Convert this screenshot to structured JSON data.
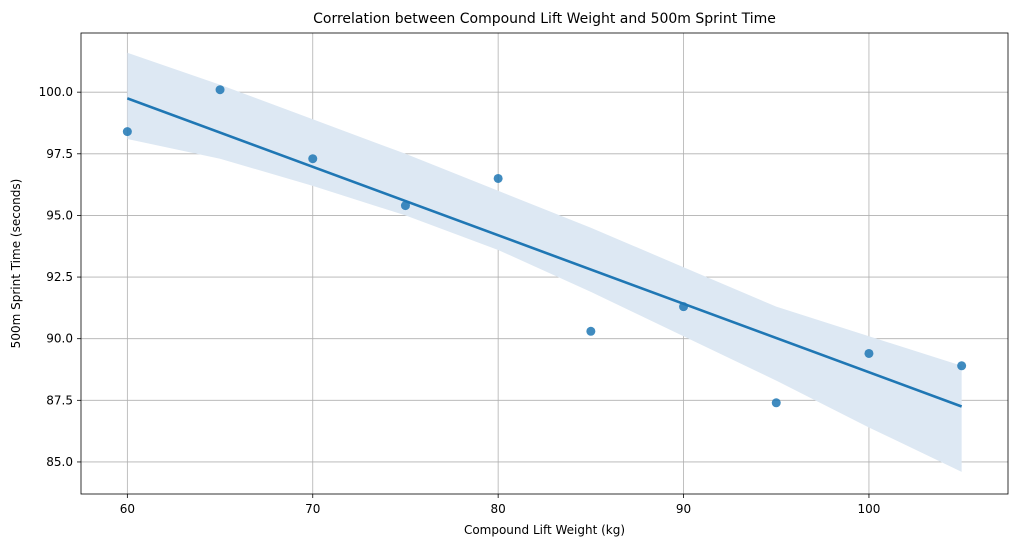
{
  "chart_data": {
    "type": "scatter",
    "title": "Correlation between Compound Lift Weight and 500m Sprint Time",
    "xlabel": "Compound Lift Weight (kg)",
    "ylabel": "500m Sprint Time (seconds)",
    "xlim": [
      57.5,
      107.5
    ],
    "ylim": [
      83.7,
      102.4
    ],
    "x_ticks": [
      60,
      70,
      80,
      90,
      100
    ],
    "x_tick_labels": [
      "60",
      "70",
      "80",
      "90",
      "100"
    ],
    "y_ticks": [
      85.0,
      87.5,
      90.0,
      92.5,
      95.0,
      97.5,
      100.0
    ],
    "y_tick_labels": [
      "85.0",
      "87.5",
      "90.0",
      "92.5",
      "95.0",
      "97.5",
      "100.0"
    ],
    "grid": true,
    "points": [
      {
        "x": 60,
        "y": 98.4
      },
      {
        "x": 65,
        "y": 100.1
      },
      {
        "x": 70,
        "y": 97.3
      },
      {
        "x": 75,
        "y": 95.4
      },
      {
        "x": 80,
        "y": 96.5
      },
      {
        "x": 85,
        "y": 90.3
      },
      {
        "x": 90,
        "y": 91.3
      },
      {
        "x": 95,
        "y": 87.4
      },
      {
        "x": 100,
        "y": 89.4
      },
      {
        "x": 105,
        "y": 88.9
      }
    ],
    "regression_line": {
      "x": [
        60,
        105
      ],
      "y": [
        99.75,
        87.25
      ]
    },
    "confidence_band": {
      "x": [
        60,
        65,
        70,
        75,
        80,
        85,
        90,
        95,
        100,
        105
      ],
      "upper": [
        101.6,
        100.3,
        98.9,
        97.5,
        96.0,
        94.5,
        92.9,
        91.3,
        90.1,
        88.9
      ],
      "lower": [
        98.1,
        97.3,
        96.2,
        95.0,
        93.6,
        91.9,
        90.1,
        88.3,
        86.4,
        84.6
      ]
    },
    "colors": {
      "points": "#1f77b4",
      "line": "#1f77b4",
      "band": "#dde8f3",
      "grid": "#b0b0b0"
    }
  }
}
